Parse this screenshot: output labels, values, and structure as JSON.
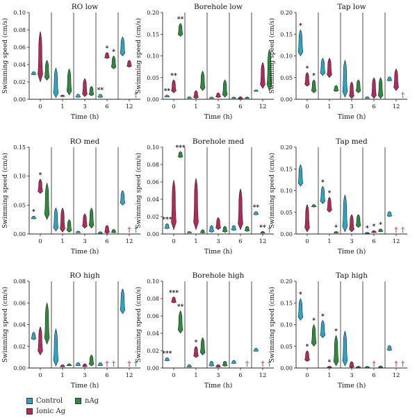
{
  "colors": {
    "control": "#2fa3c6",
    "ionic": "#b02a5a",
    "nag": "#2e8b3e"
  },
  "legend": {
    "control": "Control",
    "ionic": "Ionic Ag",
    "nag": "nAg"
  },
  "chart_data": [
    {
      "type": "violin",
      "title": "RO low",
      "xlabel": "Time (h)",
      "ylabel": "Swimming speed (cm/s)",
      "categories": [
        "0",
        "1",
        "3",
        "6",
        "12"
      ],
      "ylim": [
        0,
        0.1
      ],
      "yticks": [
        "0.00",
        "0.02",
        "0.04",
        "0.06",
        "0.08",
        "0.10"
      ],
      "series": [
        {
          "name": "Control",
          "values": [
            [
              0.028,
              0.032
            ],
            [
              0.002,
              0.036
            ],
            [
              0.002,
              0.006
            ],
            [
              0.002,
              0.006
            ],
            [
              0.05,
              0.072
            ]
          ]
        },
        {
          "name": "Ionic Ag",
          "values": [
            [
              0.02,
              0.078
            ],
            [
              0.003,
              0.005
            ],
            [
              0.003,
              0.024
            ],
            [
              0.047,
              0.054
            ],
            [
              0.037,
              0.045
            ]
          ]
        },
        {
          "name": "nAg",
          "values": [
            [
              0.022,
              0.045
            ],
            [
              0.005,
              0.035
            ],
            [
              0.004,
              0.015
            ],
            [
              0.035,
              0.05
            ],
            null
          ]
        }
      ],
      "markers": [
        {
          "x": "6",
          "series": "Control",
          "text": "**"
        },
        {
          "x": "6",
          "series": "Ionic Ag",
          "text": "*"
        },
        {
          "x": "6",
          "series": "nAg",
          "text": "*"
        },
        {
          "x": "12",
          "series": "nAg",
          "text": "†"
        }
      ]
    },
    {
      "type": "violin",
      "title": "Borehole low",
      "xlabel": "Time (h)",
      "ylabel": "Swimming speed (cm/s)",
      "categories": [
        "0",
        "1",
        "3",
        "6",
        "12"
      ],
      "ylim": [
        0,
        0.2
      ],
      "yticks": [
        "0.00",
        "0.05",
        "0.10",
        "0.15",
        "0.20"
      ],
      "series": [
        {
          "name": "Control",
          "values": [
            [
              0.005,
              0.01
            ],
            [
              0.002,
              0.006
            ],
            [
              0.002,
              0.004
            ],
            [
              0.002,
              0.004
            ],
            [
              0.018,
              0.022
            ]
          ]
        },
        {
          "name": "Ionic Ag",
          "values": [
            [
              0.015,
              0.045
            ],
            [
              0.002,
              0.02
            ],
            [
              0.004,
              0.015
            ],
            [
              0.001,
              0.006
            ],
            [
              0.025,
              0.085
            ]
          ]
        },
        {
          "name": "nAg",
          "values": [
            [
              0.145,
              0.175
            ],
            [
              0.02,
              0.065
            ],
            [
              0.005,
              0.045
            ],
            [
              0.002,
              0.005
            ],
            [
              0.02,
              0.115
            ]
          ]
        }
      ],
      "markers": [
        {
          "x": "0",
          "series": "Control",
          "text": "**"
        },
        {
          "x": "0",
          "series": "Ionic Ag",
          "text": "**"
        },
        {
          "x": "0",
          "series": "nAg",
          "text": "**"
        }
      ]
    },
    {
      "type": "violin",
      "title": "Tap low",
      "xlabel": "Time (h)",
      "ylabel": "Swimming speed (cm/s)",
      "categories": [
        "0",
        "1",
        "3",
        "6",
        "12"
      ],
      "ylim": [
        0,
        0.2
      ],
      "yticks": [
        "0.00",
        "0.05",
        "0.10",
        "0.15",
        "0.20"
      ],
      "series": [
        {
          "name": "Control",
          "values": [
            [
              0.1,
              0.16
            ],
            [
              0.055,
              0.095
            ],
            [
              0.005,
              0.09
            ],
            [
              0.002,
              0.006
            ],
            [
              0.042,
              0.052
            ]
          ]
        },
        {
          "name": "Ionic Ag",
          "values": [
            [
              0.03,
              0.062
            ],
            [
              0.05,
              0.095
            ],
            [
              0.002,
              0.04
            ],
            [
              0.002,
              0.05
            ],
            [
              0.02,
              0.07
            ]
          ]
        },
        {
          "name": "nAg",
          "values": [
            [
              0.015,
              0.045
            ],
            [
              0.018,
              0.032
            ],
            [
              0.015,
              0.045
            ],
            [
              0.002,
              0.05
            ],
            null
          ]
        }
      ],
      "markers": [
        {
          "x": "0",
          "series": "Control",
          "text": "*"
        },
        {
          "x": "0",
          "series": "Ionic Ag",
          "text": "*"
        },
        {
          "x": "0",
          "series": "nAg",
          "text": "*"
        },
        {
          "x": "12",
          "series": "nAg",
          "text": "†"
        }
      ]
    },
    {
      "type": "violin",
      "title": "RO med",
      "xlabel": "Time (h)",
      "ylabel": "Swimming speed (cm/s)",
      "categories": [
        "0",
        "1",
        "3",
        "6",
        "12"
      ],
      "ylim": [
        0,
        0.15
      ],
      "yticks": [
        "0.00",
        "0.05",
        "0.10",
        "0.15"
      ],
      "series": [
        {
          "name": "Control",
          "values": [
            [
              0.026,
              0.031
            ],
            [
              0.005,
              0.045
            ],
            [
              0.002,
              0.005
            ],
            [
              0.001,
              0.004
            ],
            [
              0.05,
              0.075
            ]
          ]
        },
        {
          "name": "Ionic Ag",
          "values": [
            [
              0.07,
              0.095
            ],
            [
              0.003,
              0.045
            ],
            [
              0.01,
              0.035
            ],
            [
              0.001,
              0.015
            ],
            null
          ]
        },
        {
          "name": "nAg",
          "values": [
            [
              0.025,
              0.088
            ],
            [
              0.003,
              0.025
            ],
            [
              0.01,
              0.045
            ],
            [
              0.002,
              0.008
            ],
            null
          ]
        }
      ],
      "markers": [
        {
          "x": "0",
          "series": "Control",
          "text": "*"
        },
        {
          "x": "0",
          "series": "Ionic Ag",
          "text": "*"
        },
        {
          "x": "12",
          "series": "Ionic Ag",
          "text": "†"
        },
        {
          "x": "12",
          "series": "nAg",
          "text": "†"
        }
      ]
    },
    {
      "type": "violin",
      "title": "Borehole med",
      "xlabel": "Time (h)",
      "ylabel": "Swimming speed (cm/s)",
      "categories": [
        "0",
        "1",
        "3",
        "6",
        "12"
      ],
      "ylim": [
        0,
        0.1
      ],
      "yticks": [
        "0.00",
        "0.02",
        "0.04",
        "0.06",
        "0.08",
        "0.10"
      ],
      "series": [
        {
          "name": "Control",
          "values": [
            [
              0.006,
              0.012
            ],
            [
              0.001,
              0.003
            ],
            [
              0.002,
              0.01
            ],
            [
              0.004,
              0.01
            ],
            [
              0.022,
              0.026
            ]
          ]
        },
        {
          "name": "Ionic Ag",
          "values": [
            [
              0.005,
              0.062
            ],
            [
              0.005,
              0.064
            ],
            [
              0.005,
              0.019
            ],
            [
              0.005,
              0.052
            ],
            [
              0.001,
              0.003
            ]
          ]
        },
        {
          "name": "nAg",
          "values": [
            [
              0.088,
              0.095
            ],
            [
              0.001,
              0.005
            ],
            [
              0.002,
              0.009
            ],
            [
              0.003,
              0.009
            ],
            null
          ]
        }
      ],
      "markers": [
        {
          "x": "0",
          "series": "Control",
          "text": "***"
        },
        {
          "x": "0",
          "series": "nAg",
          "text": "***"
        },
        {
          "x": "12",
          "series": "Control",
          "text": "**"
        },
        {
          "x": "12",
          "series": "Ionic Ag",
          "text": "**"
        },
        {
          "x": "12",
          "series": "nAg",
          "text": "†"
        }
      ]
    },
    {
      "type": "violin",
      "title": "Tap med",
      "xlabel": "Time (h)",
      "ylabel": "Swimming speed (cm/s)",
      "categories": [
        "0",
        "1",
        "3",
        "6",
        "12"
      ],
      "ylim": [
        0,
        0.2
      ],
      "yticks": [
        "0.00",
        "0.05",
        "0.10",
        "0.15",
        "0.20"
      ],
      "series": [
        {
          "name": "Control",
          "values": [
            [
              0.11,
              0.16
            ],
            [
              0.07,
              0.11
            ],
            [
              0.005,
              0.09
            ],
            [
              0.001,
              0.004
            ],
            [
              0.04,
              0.052
            ]
          ]
        },
        {
          "name": "Ionic Ag",
          "values": [
            [
              0.005,
              0.068
            ],
            [
              0.05,
              0.085
            ],
            [
              0.005,
              0.045
            ],
            [
              0.003,
              0.008
            ],
            null
          ]
        },
        {
          "name": "nAg",
          "values": [
            [
              0.062,
              0.068
            ],
            [
              0.002,
              0.006
            ],
            [
              0.015,
              0.045
            ],
            [
              0.005,
              0.012
            ],
            null
          ]
        }
      ],
      "markers": [
        {
          "x": "1",
          "series": "Control",
          "text": "*"
        },
        {
          "x": "1",
          "series": "Ionic Ag",
          "text": "*"
        },
        {
          "x": "1",
          "series": "nAg",
          "text": "*"
        },
        {
          "x": "6",
          "series": "Control",
          "text": "*"
        },
        {
          "x": "6",
          "series": "Ionic Ag",
          "text": "*"
        },
        {
          "x": "6",
          "series": "nAg",
          "text": "*"
        },
        {
          "x": "12",
          "series": "Ionic Ag",
          "text": "†"
        },
        {
          "x": "12",
          "series": "nAg",
          "text": "†"
        }
      ]
    },
    {
      "type": "violin",
      "title": "RO high",
      "xlabel": "Time (h)",
      "ylabel": "Swimming speed (cm/s)",
      "categories": [
        "0",
        "1",
        "3",
        "6",
        "12"
      ],
      "ylim": [
        0,
        0.08
      ],
      "yticks": [
        "0.00",
        "0.02",
        "0.04",
        "0.06",
        "0.08"
      ],
      "series": [
        {
          "name": "Control",
          "values": [
            [
              0.026,
              0.033
            ],
            [
              0.002,
              0.036
            ],
            [
              0.002,
              0.005
            ],
            [
              0.002,
              0.005
            ],
            [
              0.05,
              0.073
            ]
          ]
        },
        {
          "name": "Ionic Ag",
          "values": [
            [
              0.012,
              0.038
            ],
            [
              0.001,
              0.003
            ],
            [
              0.001,
              0.004
            ],
            null,
            null
          ]
        },
        {
          "name": "nAg",
          "values": [
            [
              0.022,
              0.06
            ],
            [
              0.002,
              0.004
            ],
            [
              0.002,
              0.012
            ],
            null,
            null
          ]
        }
      ],
      "markers": [
        {
          "x": "6",
          "series": "Ionic Ag",
          "text": "†"
        },
        {
          "x": "6",
          "series": "nAg",
          "text": "†"
        },
        {
          "x": "12",
          "series": "Ionic Ag",
          "text": "†"
        },
        {
          "x": "12",
          "series": "nAg",
          "text": "†"
        }
      ]
    },
    {
      "type": "violin",
      "title": "Borehole high",
      "xlabel": "Time (h)",
      "ylabel": "Swimming speed (cm/s)",
      "categories": [
        "0",
        "1",
        "3",
        "6",
        "12"
      ],
      "ylim": [
        0,
        0.1
      ],
      "yticks": [
        "0.00",
        "0.02",
        "0.04",
        "0.06",
        "0.08",
        "0.10"
      ],
      "series": [
        {
          "name": "Control",
          "values": [
            [
              0.008,
              0.012
            ],
            [
              0.001,
              0.004
            ],
            [
              0.002,
              0.008
            ],
            [
              0.005,
              0.009
            ],
            [
              0.019,
              0.023
            ]
          ]
        },
        {
          "name": "Ionic Ag",
          "values": [
            [
              0.075,
              0.082
            ],
            [
              0.012,
              0.025
            ],
            [
              0.001,
              0.004
            ],
            null,
            null
          ]
        },
        {
          "name": "nAg",
          "values": [
            [
              0.04,
              0.066
            ],
            [
              0.015,
              0.035
            ],
            [
              0.002,
              0.008
            ],
            null,
            null
          ]
        }
      ],
      "markers": [
        {
          "x": "0",
          "series": "Control",
          "text": "***"
        },
        {
          "x": "0",
          "series": "Ionic Ag",
          "text": "***"
        },
        {
          "x": "0",
          "series": "nAg",
          "text": "**"
        },
        {
          "x": "1",
          "series": "Ionic Ag",
          "text": "*"
        },
        {
          "x": "6",
          "series": "nAg",
          "text": "†"
        },
        {
          "x": "12",
          "series": "Ionic Ag",
          "text": "†"
        },
        {
          "x": "12",
          "series": "nAg",
          "text": "†"
        }
      ]
    },
    {
      "type": "violin",
      "title": "Tap high",
      "xlabel": "Time (h)",
      "ylabel": "Swimming speed (cm/s)",
      "categories": [
        "0",
        "1",
        "3",
        "6",
        "12"
      ],
      "ylim": [
        0,
        0.2
      ],
      "yticks": [
        "0.00",
        "0.05",
        "0.10",
        "0.15",
        "0.20"
      ],
      "series": [
        {
          "name": "Control",
          "values": [
            [
              0.11,
              0.16
            ],
            [
              0.07,
              0.11
            ],
            [
              0.005,
              0.085
            ],
            [
              0.001,
              0.004
            ],
            [
              0.04,
              0.052
            ]
          ]
        },
        {
          "name": "Ionic Ag",
          "values": [
            [
              0.015,
              0.04
            ],
            [
              0.001,
              0.004
            ],
            [
              0.001,
              0.015
            ],
            null,
            null
          ]
        },
        {
          "name": "nAg",
          "values": [
            [
              0.05,
              0.1
            ],
            [
              0.005,
              0.075
            ],
            [
              0.001,
              0.004
            ],
            [
              0.001,
              0.005
            ],
            null
          ]
        }
      ],
      "markers": [
        {
          "x": "0",
          "series": "Control",
          "text": "*"
        },
        {
          "x": "0",
          "series": "Ionic Ag",
          "text": "*"
        },
        {
          "x": "0",
          "series": "nAg",
          "text": "*"
        },
        {
          "x": "1",
          "series": "Control",
          "text": "*"
        },
        {
          "x": "1",
          "series": "Ionic Ag",
          "text": "*"
        },
        {
          "x": "1",
          "series": "nAg",
          "text": "*"
        },
        {
          "x": "6",
          "series": "Ionic Ag",
          "text": "†"
        },
        {
          "x": "12",
          "series": "Ionic Ag",
          "text": "†"
        },
        {
          "x": "12",
          "series": "nAg",
          "text": "†"
        }
      ]
    }
  ]
}
